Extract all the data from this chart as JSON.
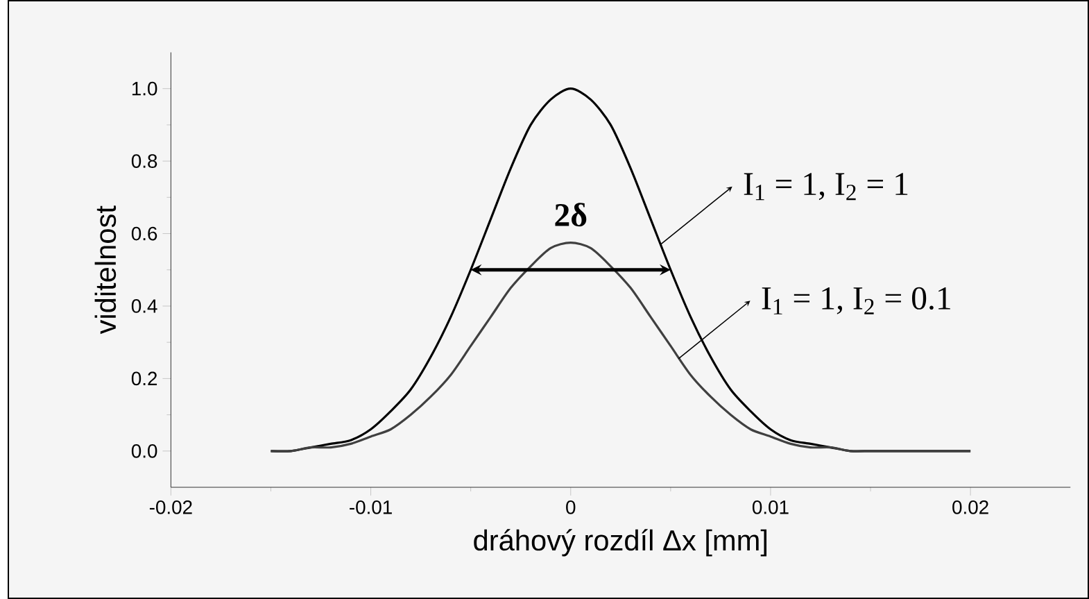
{
  "chart_data": {
    "type": "line",
    "xlabel": "dráhový rozdíl Δx [mm]",
    "ylabel": "viditelnost",
    "x": [
      -0.015,
      -0.014,
      -0.013,
      -0.012,
      -0.011,
      -0.01,
      -0.009,
      -0.008,
      -0.007,
      -0.006,
      -0.005,
      -0.004,
      -0.003,
      -0.002,
      -0.001,
      0,
      0.001,
      0.002,
      0.003,
      0.004,
      0.005,
      0.006,
      0.007,
      0.008,
      0.009,
      0.01,
      0.011,
      0.012,
      0.013,
      0.014,
      0.015,
      0.016,
      0.017,
      0.018,
      0.019,
      0.02
    ],
    "series": [
      {
        "color": "#000000",
        "values": [
          0,
          0,
          0.01,
          0.02,
          0.03,
          0.06,
          0.11,
          0.17,
          0.26,
          0.37,
          0.5,
          0.64,
          0.78,
          0.9,
          0.97,
          1.0,
          0.97,
          0.9,
          0.78,
          0.64,
          0.5,
          0.37,
          0.26,
          0.17,
          0.11,
          0.06,
          0.03,
          0.02,
          0.01,
          0,
          0,
          0,
          0,
          0,
          0,
          0
        ]
      },
      {
        "color": "#404040",
        "values": [
          0,
          0,
          0.01,
          0.01,
          0.02,
          0.04,
          0.06,
          0.1,
          0.15,
          0.21,
          0.29,
          0.37,
          0.45,
          0.51,
          0.56,
          0.575,
          0.56,
          0.51,
          0.45,
          0.37,
          0.29,
          0.21,
          0.15,
          0.1,
          0.06,
          0.04,
          0.02,
          0.01,
          0.01,
          0,
          0,
          0,
          0,
          0,
          0,
          0
        ]
      }
    ],
    "xlim": [
      -0.02,
      0.025
    ],
    "ylim": [
      -0.1,
      1.1
    ],
    "xticks": [
      -0.02,
      -0.01,
      0,
      0.01,
      0.02
    ],
    "yticks": [
      {
        "value": 0,
        "label": "0.0"
      },
      {
        "value": 0.2,
        "label": "0.2"
      },
      {
        "value": 0.4,
        "label": "0.4"
      },
      {
        "value": 0.6,
        "label": "0.6"
      },
      {
        "value": 0.8,
        "label": "0.8"
      },
      {
        "value": 1.0,
        "label": "1.0"
      }
    ],
    "annotations": [
      {
        "text": "2δ",
        "x": 0.005,
        "y": 0.5
      },
      {
        "text": "I$_{1}$ = 1,  I$_{2}$ = 1",
        "x": 0.0045,
        "y": 0.57
      },
      {
        "text": "I$_{1}$ = 1,   I$_{2}$ = 0.1",
        "x": 0.0054,
        "y": 0.255
      }
    ],
    "marker": "none",
    "line_style": "solid",
    "grid": false
  }
}
